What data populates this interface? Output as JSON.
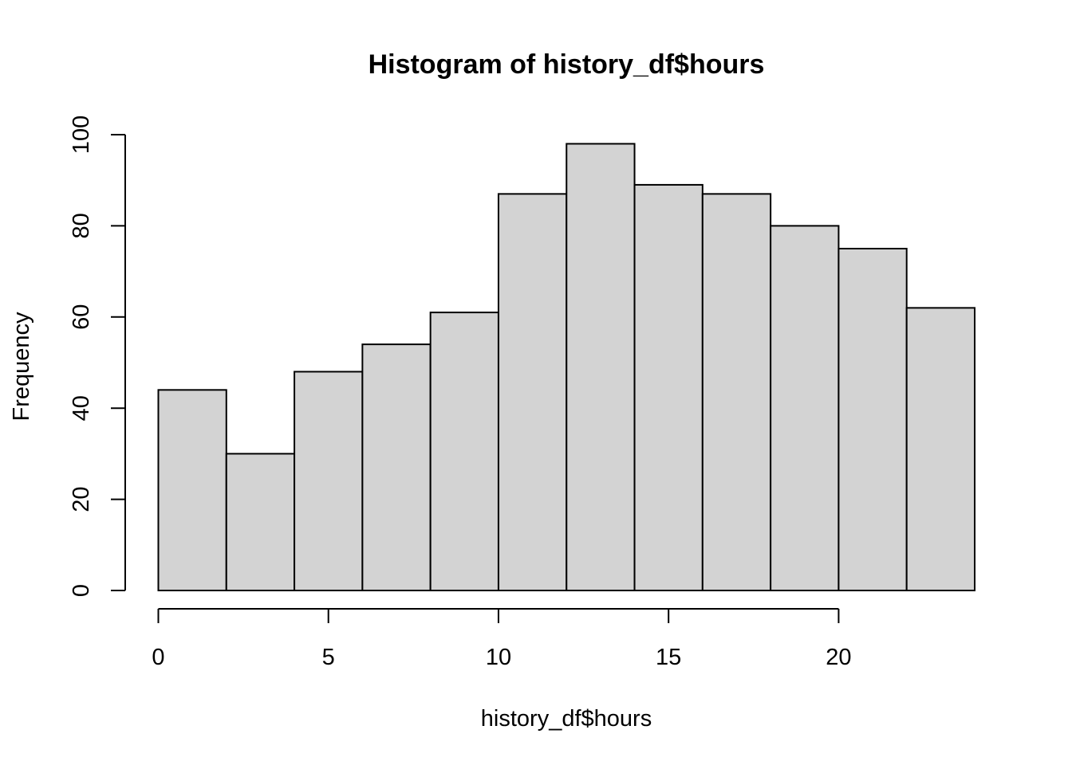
{
  "chart_data": {
    "type": "bar",
    "title": "Histogram of history_df$hours",
    "xlabel": "history_df$hours",
    "ylabel": "Frequency",
    "bins": [
      {
        "start": 0,
        "end": 2,
        "count": 44
      },
      {
        "start": 2,
        "end": 4,
        "count": 30
      },
      {
        "start": 4,
        "end": 6,
        "count": 48
      },
      {
        "start": 6,
        "end": 8,
        "count": 54
      },
      {
        "start": 8,
        "end": 10,
        "count": 61
      },
      {
        "start": 10,
        "end": 12,
        "count": 87
      },
      {
        "start": 12,
        "end": 14,
        "count": 98
      },
      {
        "start": 14,
        "end": 16,
        "count": 89
      },
      {
        "start": 16,
        "end": 18,
        "count": 87
      },
      {
        "start": 18,
        "end": 20,
        "count": 80
      },
      {
        "start": 20,
        "end": 22,
        "count": 75
      },
      {
        "start": 22,
        "end": 24,
        "count": 62
      }
    ],
    "x_ticks": [
      0,
      5,
      10,
      15,
      20
    ],
    "y_ticks": [
      0,
      20,
      40,
      60,
      80,
      100
    ],
    "xlim": [
      0,
      24
    ],
    "ylim": [
      0,
      100
    ],
    "grid": false,
    "bar_color": "#d3d3d3",
    "border_color": "#000000"
  }
}
